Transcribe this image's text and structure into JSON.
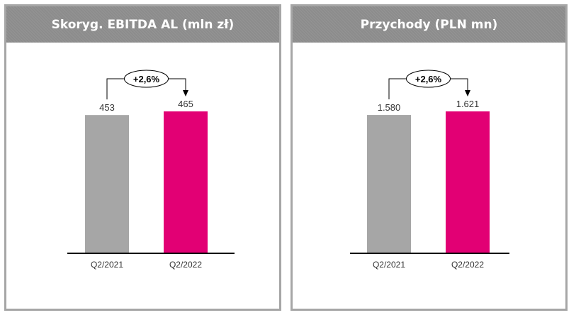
{
  "colors": {
    "bar_2021": "#a6a6a6",
    "bar_2022": "#e20074",
    "header": "#8c8c8c",
    "border": "#a6a6a6"
  },
  "chart_data": [
    {
      "type": "bar",
      "title": "Skoryg. EBITDA AL (mln zł)",
      "categories": [
        "Q2/2021",
        "Q2/2022"
      ],
      "values": [
        453,
        465
      ],
      "value_labels": [
        "453",
        "465"
      ],
      "change_label": "+2,6%"
    },
    {
      "type": "bar",
      "title": "Przychody  (PLN mn)",
      "categories": [
        "Q2/2021",
        "Q2/2022"
      ],
      "values": [
        1580,
        1621
      ],
      "value_labels": [
        "1.580",
        "1.621"
      ],
      "change_label": "+2,6%"
    }
  ]
}
